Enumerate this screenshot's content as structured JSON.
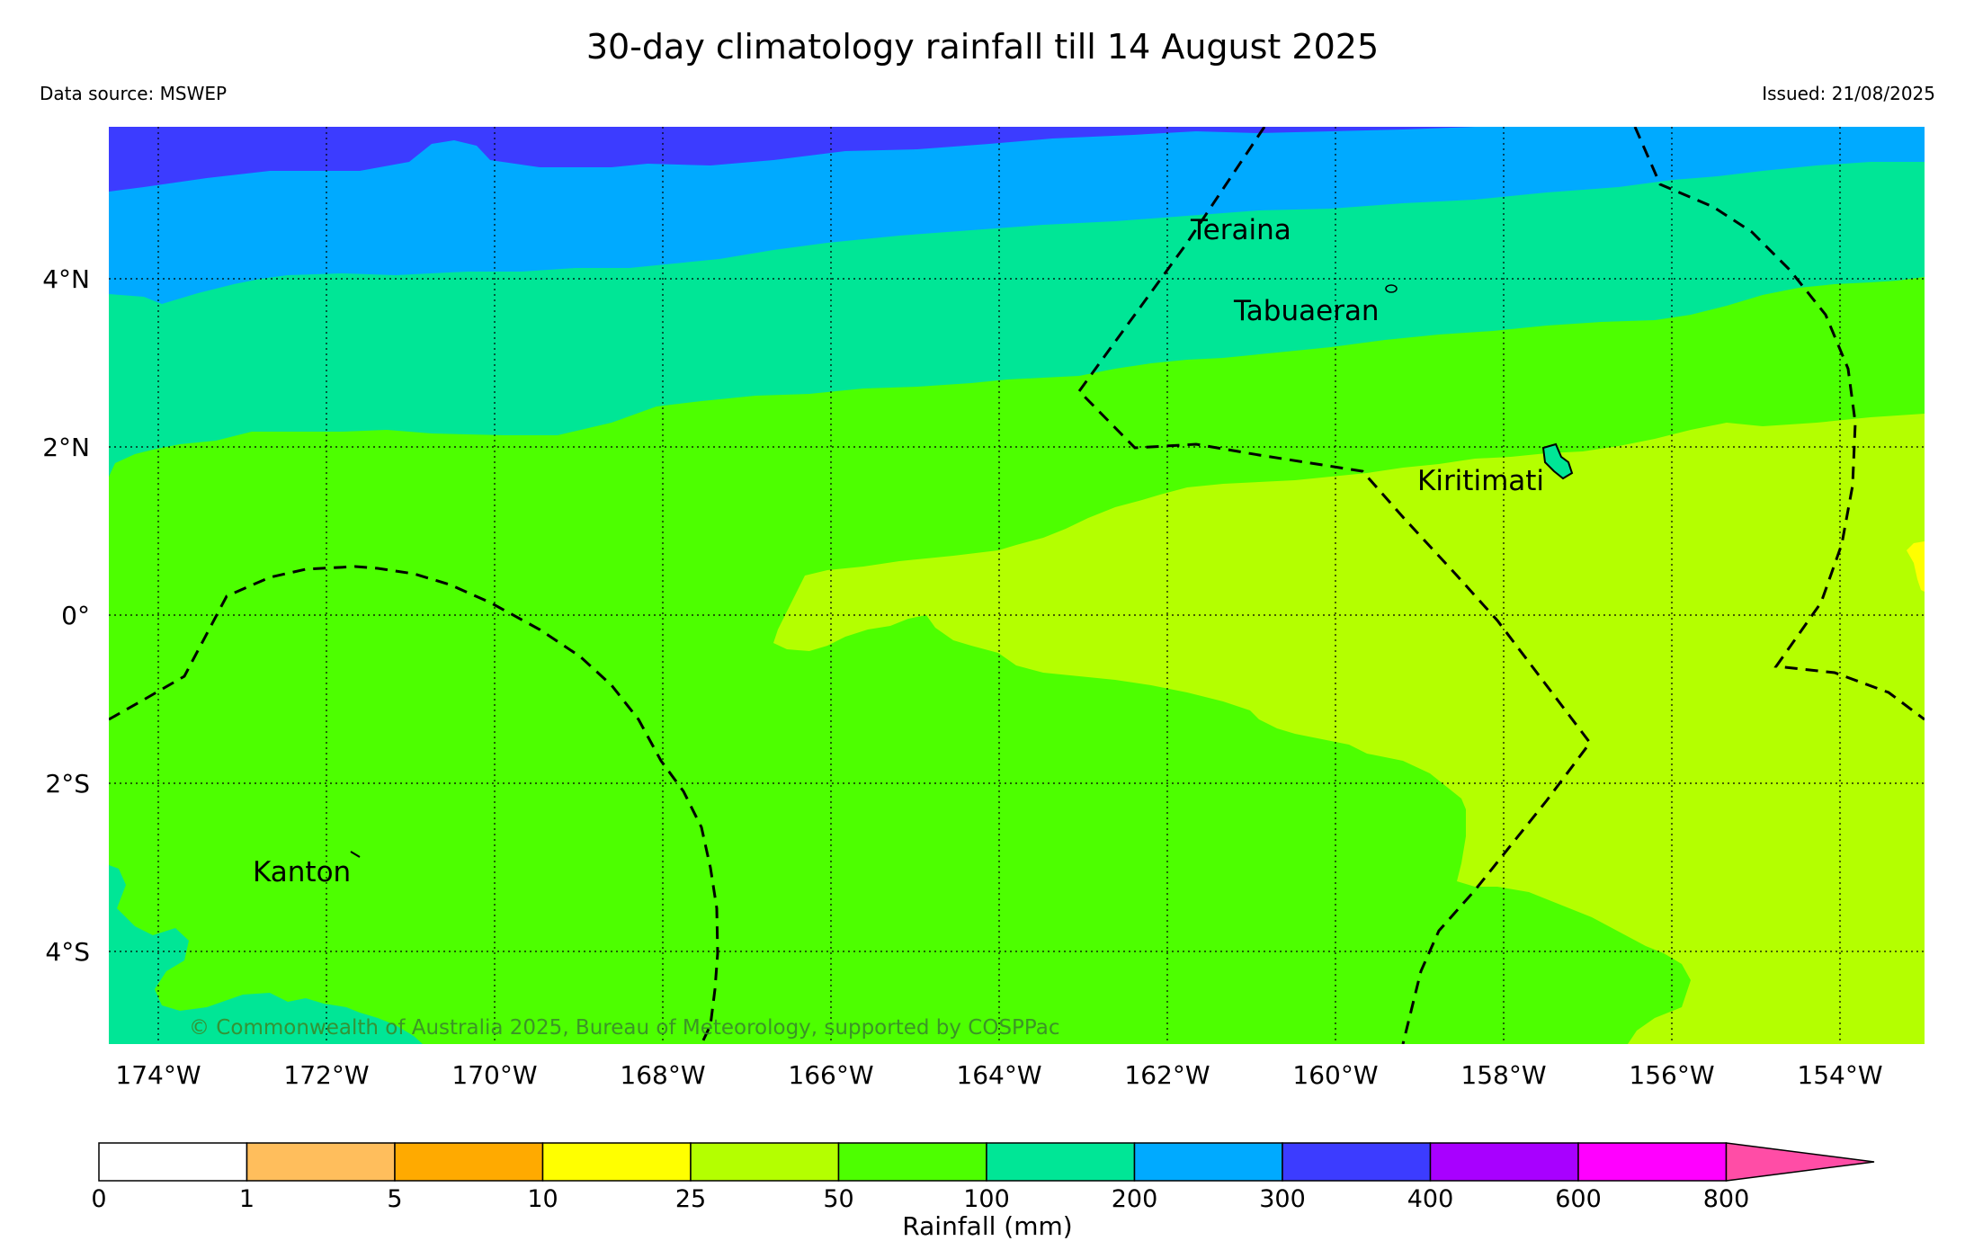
{
  "header": {
    "title": "30-day climatology rainfall till 14 August 2025",
    "data_source": "Data source: MSWEP",
    "issued": "Issued: 21/08/2025"
  },
  "map": {
    "lon_range": [
      "174.6°W",
      "153.0°W"
    ],
    "lat_range": [
      "5.2°S",
      "5.8°N"
    ],
    "lon_ticks": [
      "174°W",
      "172°W",
      "170°W",
      "168°W",
      "166°W",
      "164°W",
      "162°W",
      "160°W",
      "158°W",
      "156°W",
      "154°W"
    ],
    "lat_ticks": [
      "4°N",
      "2°N",
      "0°",
      "2°S",
      "4°S"
    ],
    "gridlines": "dotted",
    "places": [
      "Teraina",
      "Tabuaeran",
      "Kiritimati",
      "Kanton"
    ],
    "copyright": "© Commonwealth of Australia 2025, Bureau of Meteorology, supported by COSPPac",
    "boundaries": "dashed EEZ lines",
    "pattern": "rainfall decreasing from north (300-400 mm) to south-east (25-50 mm)"
  },
  "colorbar": {
    "title": "Rainfall (mm)",
    "ticks": [
      "0",
      "1",
      "5",
      "10",
      "25",
      "50",
      "100",
      "200",
      "300",
      "400",
      "600",
      "800"
    ],
    "colors": [
      "#ffffff",
      "#ffbe5c",
      "#ffaa00",
      "#ffff00",
      "#b4ff00",
      "#4dff00",
      "#00e696",
      "#00aaff",
      "#3c3cff",
      "#a800ff",
      "#ff00ff",
      "#ff4da6"
    ],
    "extend": "max"
  }
}
